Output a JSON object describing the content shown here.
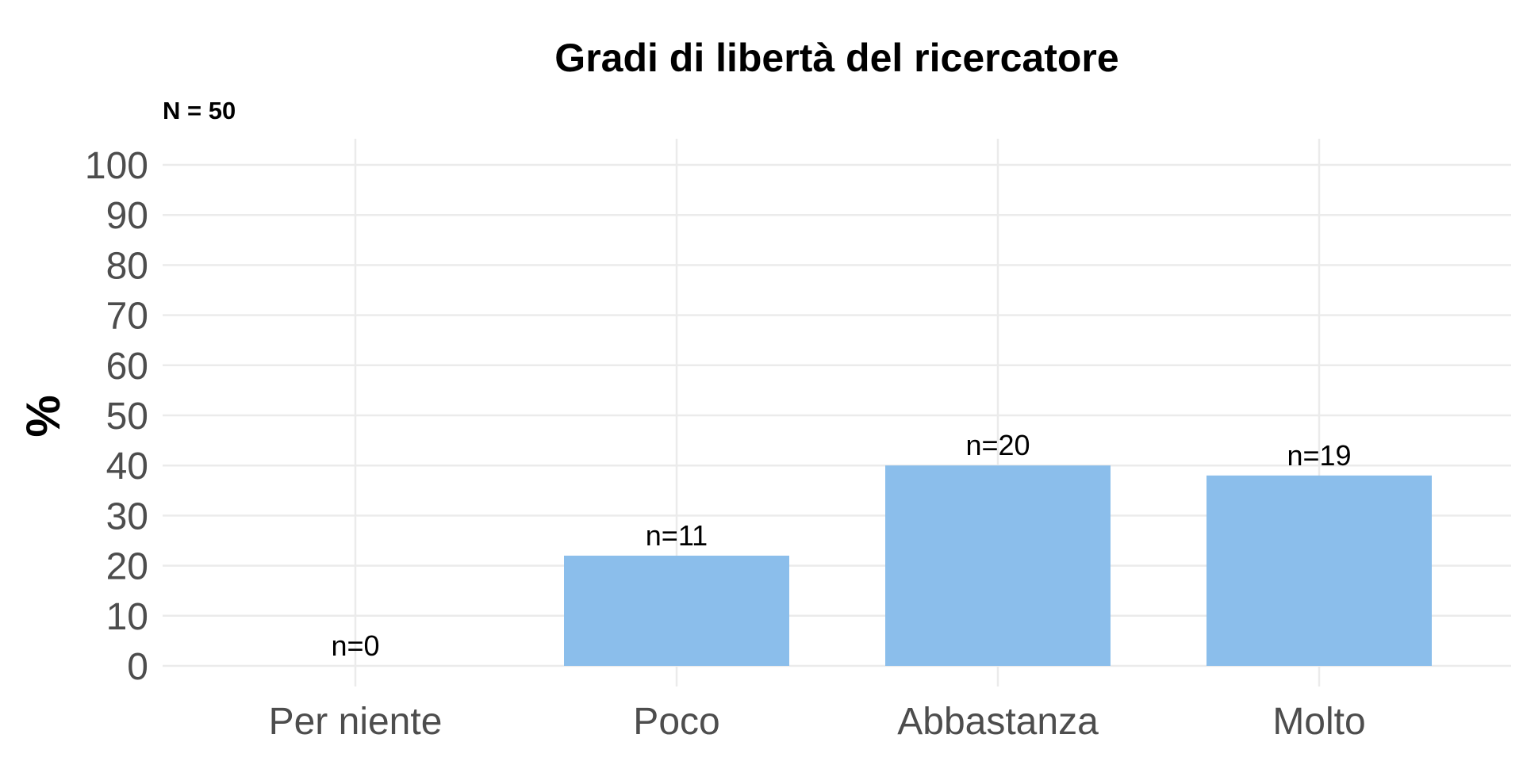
{
  "chart_data": {
    "type": "bar",
    "title": "Gradi di libertà del ricercatore",
    "subtitle": "N = 50",
    "xlabel": "",
    "ylabel": "%",
    "ylim": [
      0,
      100
    ],
    "yticks": [
      0,
      10,
      20,
      30,
      40,
      50,
      60,
      70,
      80,
      90,
      100
    ],
    "categories": [
      "Per niente",
      "Poco",
      "Abbastanza",
      "Molto"
    ],
    "values": [
      0,
      22,
      40,
      38
    ],
    "data_labels": [
      "n=0",
      "n=11",
      "n=20",
      "n=19"
    ],
    "bar_color": "#8bbeeb",
    "grid": true,
    "legend": "none"
  }
}
